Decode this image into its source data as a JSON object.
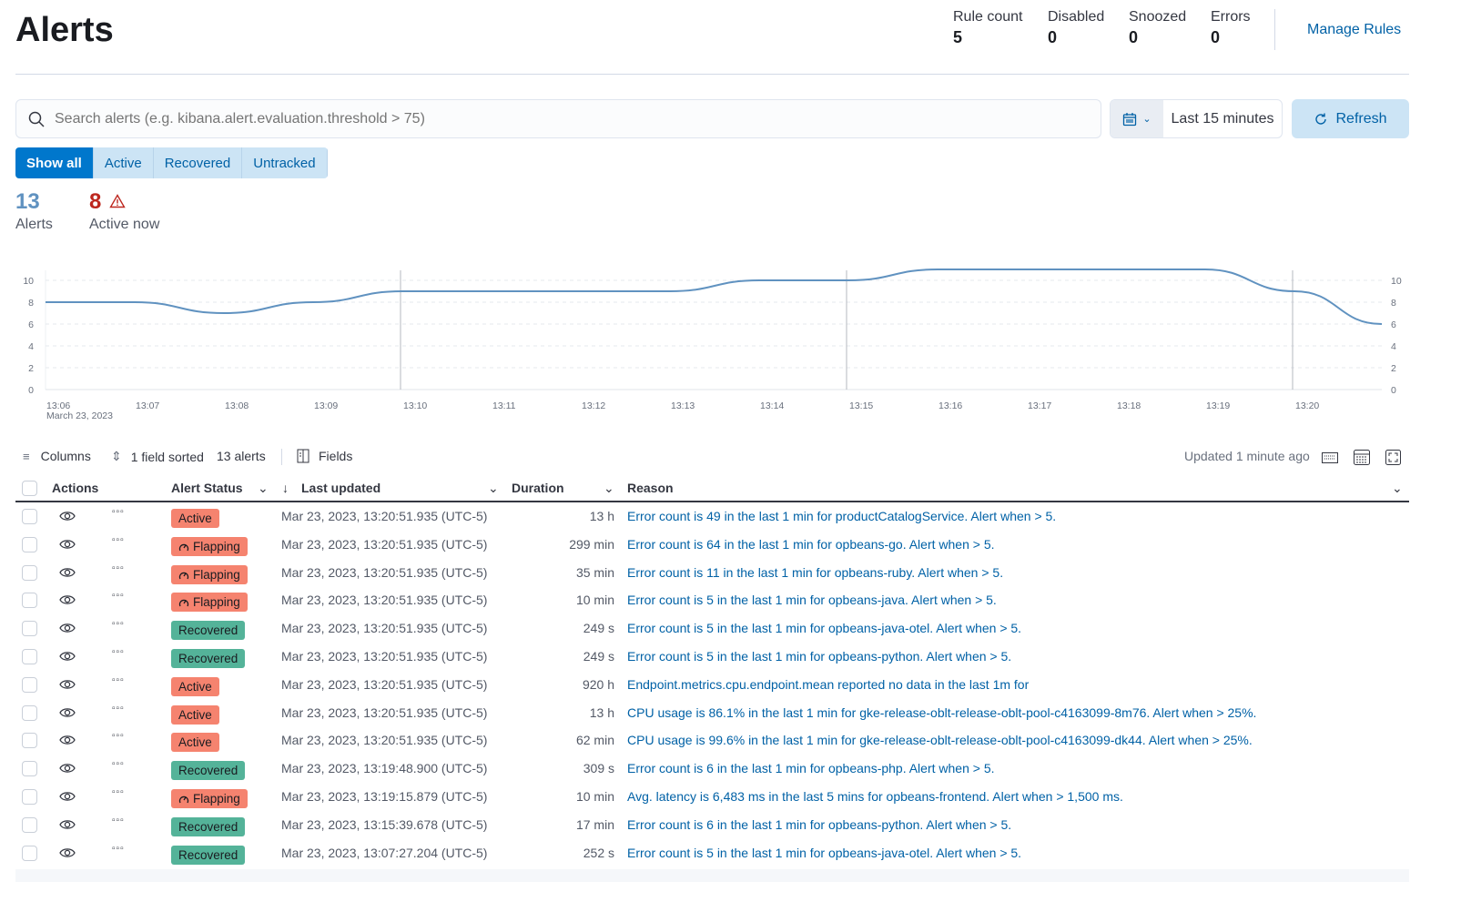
{
  "page_title": "Alerts",
  "stats": [
    {
      "label": "Rule count",
      "value": "5"
    },
    {
      "label": "Disabled",
      "value": "0"
    },
    {
      "label": "Snoozed",
      "value": "0"
    },
    {
      "label": "Errors",
      "value": "0"
    }
  ],
  "manage_rules": "Manage Rules",
  "search": {
    "placeholder": "Search alerts (e.g. kibana.alert.evaluation.threshold > 75)",
    "value": ""
  },
  "date_range": "Last 15 minutes",
  "refresh": "Refresh",
  "filters": [
    "Show all",
    "Active",
    "Recovered",
    "Untracked"
  ],
  "selected_filter": "Show all",
  "kpis": {
    "alerts": {
      "value": "13",
      "label": "Alerts"
    },
    "active": {
      "value": "8",
      "label": "Active now"
    }
  },
  "colors": {
    "accent": "#0077cc",
    "link": "#0061a6",
    "active": "#f5836f",
    "recovered": "#54b399",
    "line": "#6092c0",
    "kpi_alerts": "#6092c0",
    "kpi_active": "#bd271e"
  },
  "chart_data": {
    "type": "line",
    "x": [
      "13:06",
      "13:07",
      "13:08",
      "13:09",
      "13:10",
      "13:11",
      "13:12",
      "13:13",
      "13:14",
      "13:15",
      "13:16",
      "13:17",
      "13:18",
      "13:19",
      "13:20",
      "13:21"
    ],
    "values": [
      8,
      8,
      7,
      8,
      9,
      9,
      9,
      9,
      10,
      10,
      11,
      11,
      11,
      11,
      9,
      6
    ],
    "x_tick_labels": [
      "13:06",
      "13:07",
      "13:08",
      "13:09",
      "13:10",
      "13:11",
      "13:12",
      "13:13",
      "13:14",
      "13:15",
      "13:16",
      "13:17",
      "13:18",
      "13:19",
      "13:20"
    ],
    "x_sublabel": "March 23, 2023",
    "y_ticks": [
      0,
      2,
      4,
      6,
      8,
      10
    ],
    "ylim": [
      0,
      11
    ],
    "grid": true,
    "annotation_lines": [
      "13:10",
      "13:15",
      "13:20"
    ]
  },
  "toolbar": {
    "columns": "Columns",
    "sorted": "1 field sorted",
    "count": "13 alerts",
    "fields": "Fields",
    "updated": "Updated 1 minute ago"
  },
  "columns": {
    "actions": "Actions",
    "status": "Alert Status",
    "last_updated": "Last updated",
    "duration": "Duration",
    "reason": "Reason"
  },
  "rows": [
    {
      "status": "Active",
      "updated": "Mar 23, 2023, 13:20:51.935 (UTC-5)",
      "duration": "13 h",
      "reason": "Error count is 49 in the last 1 min for productCatalogService. Alert when > 5."
    },
    {
      "status": "Flapping",
      "updated": "Mar 23, 2023, 13:20:51.935 (UTC-5)",
      "duration": "299 min",
      "reason": "Error count is 64 in the last 1 min for opbeans-go. Alert when > 5."
    },
    {
      "status": "Flapping",
      "updated": "Mar 23, 2023, 13:20:51.935 (UTC-5)",
      "duration": "35 min",
      "reason": "Error count is 11 in the last 1 min for opbeans-ruby. Alert when > 5."
    },
    {
      "status": "Flapping",
      "updated": "Mar 23, 2023, 13:20:51.935 (UTC-5)",
      "duration": "10 min",
      "reason": "Error count is 5 in the last 1 min for opbeans-java. Alert when > 5."
    },
    {
      "status": "Recovered",
      "updated": "Mar 23, 2023, 13:20:51.935 (UTC-5)",
      "duration": "249 s",
      "reason": "Error count is 5 in the last 1 min for opbeans-java-otel. Alert when > 5."
    },
    {
      "status": "Recovered",
      "updated": "Mar 23, 2023, 13:20:51.935 (UTC-5)",
      "duration": "249 s",
      "reason": "Error count is 5 in the last 1 min for opbeans-python. Alert when > 5."
    },
    {
      "status": "Active",
      "updated": "Mar 23, 2023, 13:20:51.935 (UTC-5)",
      "duration": "920 h",
      "reason": "Endpoint.metrics.cpu.endpoint.mean reported no data in the last 1m for"
    },
    {
      "status": "Active",
      "updated": "Mar 23, 2023, 13:20:51.935 (UTC-5)",
      "duration": "13 h",
      "reason": "CPU usage is 86.1% in the last 1 min for gke-release-oblt-release-oblt-pool-c4163099-8m76. Alert when > 25%."
    },
    {
      "status": "Active",
      "updated": "Mar 23, 2023, 13:20:51.935 (UTC-5)",
      "duration": "62 min",
      "reason": "CPU usage is 99.6% in the last 1 min for gke-release-oblt-release-oblt-pool-c4163099-dk44. Alert when > 25%."
    },
    {
      "status": "Recovered",
      "updated": "Mar 23, 2023, 13:19:48.900 (UTC-5)",
      "duration": "309 s",
      "reason": "Error count is 6 in the last 1 min for opbeans-php. Alert when > 5."
    },
    {
      "status": "Flapping",
      "updated": "Mar 23, 2023, 13:19:15.879 (UTC-5)",
      "duration": "10 min",
      "reason": "Avg. latency is 6,483 ms in the last 5 mins for opbeans-frontend. Alert when > 1,500 ms."
    },
    {
      "status": "Recovered",
      "updated": "Mar 23, 2023, 13:15:39.678 (UTC-5)",
      "duration": "17 min",
      "reason": "Error count is 6 in the last 1 min for opbeans-python. Alert when > 5."
    },
    {
      "status": "Recovered",
      "updated": "Mar 23, 2023, 13:07:27.204 (UTC-5)",
      "duration": "252 s",
      "reason": "Error count is 5 in the last 1 min for opbeans-java-otel. Alert when > 5."
    }
  ]
}
